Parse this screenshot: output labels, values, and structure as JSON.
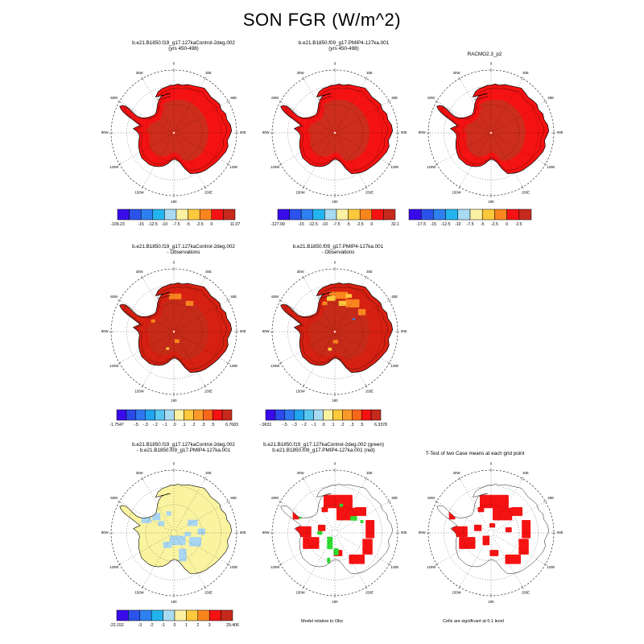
{
  "figure": {
    "title": "SON FGR (W/m^2)"
  },
  "compass": [
    "0",
    "30E",
    "60E",
    "90E",
    "120E",
    "150E",
    "180",
    "150W",
    "120W",
    "90W",
    "60W",
    "30W"
  ],
  "colors": {
    "p10": [
      "#3A0BEA",
      "#2B52EA",
      "#2E80F0",
      "#22B4EE",
      "#A8DAF2",
      "#FBF1A2",
      "#FCC83C",
      "#FA851E",
      "#F51212",
      "#C62A1C"
    ],
    "p12": [
      "#3A0BEA",
      "#2B4AEA",
      "#2E77F0",
      "#20A4EE",
      "#58C6F0",
      "#A8DAF2",
      "#FBF1A2",
      "#FCC83C",
      "#FB9A28",
      "#F8681A",
      "#F51212",
      "#C62A1C"
    ],
    "map": {
      "red": "#F51212",
      "dark_red": "#CC2D1C",
      "row2_base": "#D62012",
      "row2_dark": "#C62A18",
      "orange": "#FA851E",
      "yellow": "#FCC83C",
      "pale_yellow": "#FAF3A0",
      "light_blue": "#A9D6F2",
      "green": "#2EDD2E",
      "blue_speck": "#2E80F0",
      "white": "#FFFFFF",
      "coast": "#000000"
    }
  },
  "panels": [
    {
      "id": "p1",
      "title_lines": [
        "b.e21.B1850.f19_g17.127kaControl-2deg.002",
        "(yrs 450-498)"
      ],
      "style": "red_full",
      "colorbar": {
        "palette": "p10",
        "labels": [
          "-109.23",
          "-15",
          "-12.5",
          "-10",
          "-7.5",
          "-5",
          "-2.5",
          "0",
          "11.07"
        ],
        "fracs": [
          0,
          0.2,
          0.3,
          0.4,
          0.5,
          0.6,
          0.7,
          0.8,
          1
        ]
      }
    },
    {
      "id": "p2",
      "title_lines": [
        "b.e21.B1850.f09_g17.PMIP4-127ka.001",
        "(yrs 450-498)"
      ],
      "style": "red_full",
      "colorbar": {
        "palette": "p10",
        "labels": [
          "-127.99",
          "-15",
          "-12.5",
          "-10",
          "-7.5",
          "-5",
          "-2.5",
          "0",
          "32.1"
        ],
        "fracs": [
          0,
          0.2,
          0.3,
          0.4,
          0.5,
          0.6,
          0.7,
          0.8,
          1
        ]
      }
    },
    {
      "id": "p3",
      "title_lines": [
        "RACMO2.3_p2"
      ],
      "style": "red_speck",
      "colorbar": {
        "palette": "p10",
        "labels": [
          "-17.5",
          "-15",
          "-12.5",
          "-10",
          "-7.5",
          "-5",
          "-2.5",
          "0",
          "2.5"
        ],
        "fracs": [
          0.1,
          0.2,
          0.3,
          0.4,
          0.5,
          0.6,
          0.7,
          0.8,
          0.9
        ]
      }
    },
    {
      "id": "p4",
      "title_lines": [
        "b.e21.B1850.f19_g17.127kaControl-2deg.002",
        "- Observations"
      ],
      "style": "obs_diff_few",
      "colorbar": {
        "palette": "p12",
        "labels": [
          "-1.7547",
          "-.5",
          "-.3",
          "-.2",
          "-.1",
          ".0",
          ".1",
          ".2",
          ".3",
          ".5",
          "6.7683"
        ],
        "fracs": [
          0,
          0.1667,
          0.25,
          0.3333,
          0.4167,
          0.5,
          0.5833,
          0.6667,
          0.75,
          0.8333,
          1
        ]
      }
    },
    {
      "id": "p5",
      "title_lines": [
        "b.e21.B1850.f09_g17.PMIP4-127ka.001",
        "- Observations"
      ],
      "style": "obs_diff_many",
      "colorbar": {
        "palette": "p12",
        "labels": [
          "-.9631",
          "-.5",
          "-.3",
          "-.2",
          "-.1",
          ".0",
          ".1",
          ".2",
          ".3",
          ".5",
          "6.3378"
        ],
        "fracs": [
          0,
          0.1667,
          0.25,
          0.3333,
          0.4167,
          0.5,
          0.5833,
          0.6667,
          0.75,
          0.8333,
          1
        ]
      }
    },
    {
      "id": "p6",
      "title_lines": [
        "b.e21.B1850.f19_g17.127kaControl-2deg.002",
        "- b.e21.B1850.f09_g17.PMIP4-127ka.001"
      ],
      "style": "yellow_blue",
      "colorbar": {
        "palette": "p10",
        "labels": [
          "-22.152",
          "-3",
          "-2",
          "-1",
          "0",
          "1",
          "2",
          "3",
          "29.406"
        ],
        "fracs": [
          0,
          0.2,
          0.3,
          0.4,
          0.5,
          0.6,
          0.7,
          0.8,
          1
        ]
      }
    },
    {
      "id": "p7",
      "title_lines": [
        "b.e21.B1850.f19_g17.127kaControl-2deg.002 (green)",
        "b.e21.B1850.f09_g17.PMIP4-127ka.001 (red)"
      ],
      "style": "sig_red_green",
      "caption": "Model relative to Obs"
    },
    {
      "id": "p8",
      "title_lines": [
        "T-Test of two Case means at each grid point"
      ],
      "style": "sig_red",
      "caption": "Cells are significant at 0.1 level"
    }
  ],
  "chart_data": [
    {
      "type": "heatmap",
      "projection": "south_polar_stereographic",
      "region": "Antarctica",
      "variable": "FGR",
      "season": "SON",
      "units": "W/m^2",
      "title": "b.e21.B1850.f19_g17.127kaControl-2deg.002 (yrs 450-498)",
      "levels": [
        -15,
        -12.5,
        -10,
        -7.5,
        -5,
        -2.5,
        0
      ],
      "data_min": -109.23,
      "data_max": 11.07
    },
    {
      "type": "heatmap",
      "projection": "south_polar_stereographic",
      "region": "Antarctica",
      "variable": "FGR",
      "season": "SON",
      "units": "W/m^2",
      "title": "b.e21.B1850.f09_g17.PMIP4-127ka.001 (yrs 450-498)",
      "levels": [
        -15,
        -12.5,
        -10,
        -7.5,
        -5,
        -2.5,
        0
      ],
      "data_min": -127.99,
      "data_max": 32.1
    },
    {
      "type": "heatmap",
      "projection": "south_polar_stereographic",
      "region": "Antarctica",
      "variable": "FGR",
      "season": "SON",
      "units": "W/m^2",
      "title": "RACMO2.3_p2",
      "levels": [
        -17.5,
        -15,
        -12.5,
        -10,
        -7.5,
        -5,
        -2.5,
        0,
        2.5
      ]
    },
    {
      "type": "heatmap",
      "projection": "south_polar_stereographic",
      "region": "Antarctica",
      "variable": "FGR difference",
      "season": "SON",
      "units": "W/m^2",
      "title": "b.e21.B1850.f19_g17.127kaControl-2deg.002 - Observations",
      "levels": [
        -0.5,
        -0.3,
        -0.2,
        -0.1,
        0,
        0.1,
        0.2,
        0.3,
        0.5
      ],
      "data_min": -1.7547,
      "data_max": 6.7683
    },
    {
      "type": "heatmap",
      "projection": "south_polar_stereographic",
      "region": "Antarctica",
      "variable": "FGR difference",
      "season": "SON",
      "units": "W/m^2",
      "title": "b.e21.B1850.f09_g17.PMIP4-127ka.001 - Observations",
      "levels": [
        -0.5,
        -0.3,
        -0.2,
        -0.1,
        0,
        0.1,
        0.2,
        0.3,
        0.5
      ],
      "data_min": -0.9631,
      "data_max": 6.3378
    },
    {
      "type": "heatmap",
      "projection": "south_polar_stereographic",
      "region": "Antarctica",
      "variable": "FGR difference",
      "season": "SON",
      "units": "W/m^2",
      "title": "b.e21.B1850.f19_g17.127kaControl-2deg.002 - b.e21.B1850.f09_g17.PMIP4-127ka.001",
      "levels": [
        -3,
        -2,
        -1,
        0,
        1,
        2,
        3
      ],
      "data_min": -22.152,
      "data_max": 29.406
    },
    {
      "type": "map",
      "projection": "south_polar_stereographic",
      "region": "Antarctica",
      "title": "Model relative to Obs",
      "legend": {
        "green": "b.e21.B1850.f19_g17.127kaControl-2deg.002",
        "red": "b.e21.B1850.f09_g17.PMIP4-127ka.001"
      }
    },
    {
      "type": "map",
      "projection": "south_polar_stereographic",
      "region": "Antarctica",
      "title": "T-Test of two Case means at each grid point",
      "note": "Cells are significant at 0.1 level"
    }
  ]
}
